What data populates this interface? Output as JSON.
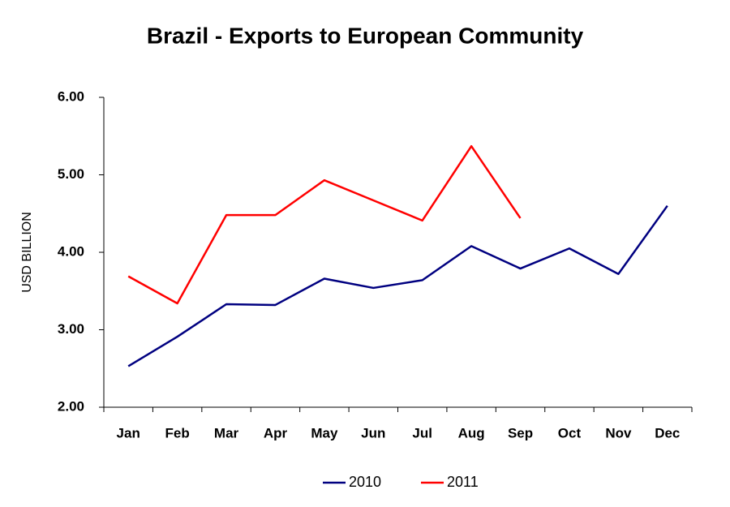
{
  "chart_data": {
    "type": "line",
    "title": "Brazil - Exports to European Community",
    "y_label": "USD BILLION",
    "categories": [
      "Jan",
      "Feb",
      "Mar",
      "Apr",
      "May",
      "Jun",
      "Jul",
      "Aug",
      "Sep",
      "Oct",
      "Nov",
      "Dec"
    ],
    "series": [
      {
        "name": "2010",
        "color": "#000080",
        "values": [
          2.53,
          2.91,
          3.33,
          3.32,
          3.66,
          3.54,
          3.64,
          4.08,
          3.79,
          4.05,
          3.72,
          4.6
        ]
      },
      {
        "name": "2011",
        "color": "#ff0000",
        "values": [
          3.69,
          3.34,
          4.48,
          4.48,
          4.93,
          4.67,
          4.41,
          5.37,
          4.44,
          null,
          null,
          null
        ]
      }
    ],
    "ylim": [
      2,
      6
    ],
    "yticks": [
      {
        "value": 2,
        "label": "2.00"
      },
      {
        "value": 3,
        "label": "3.00"
      },
      {
        "value": 4,
        "label": "4.00"
      },
      {
        "value": 5,
        "label": "5.00"
      },
      {
        "value": 6,
        "label": "6.00"
      }
    ],
    "grid": false,
    "legend": "bottom"
  }
}
